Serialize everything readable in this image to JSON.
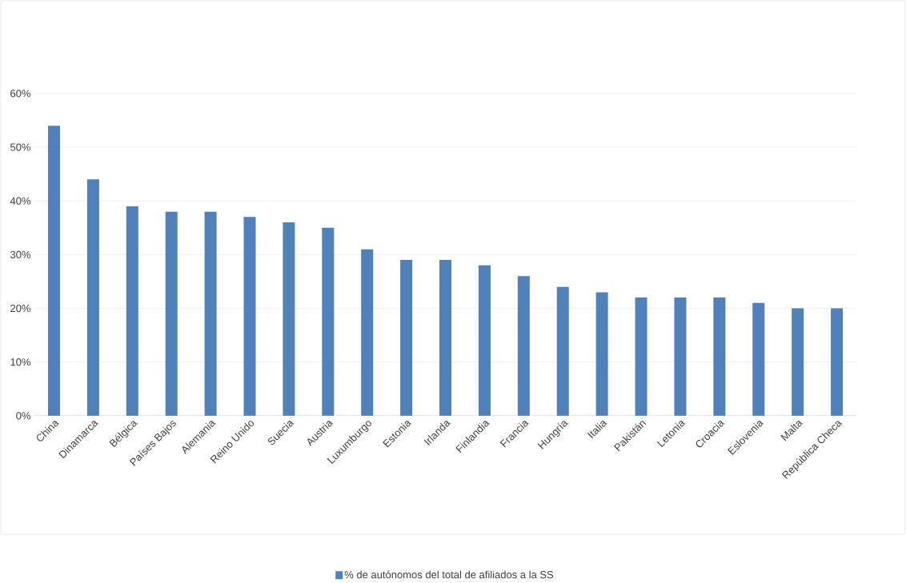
{
  "chart_data": {
    "type": "bar",
    "categories": [
      "China",
      "Dinamarca",
      "Bélgica",
      "Países Bajos",
      "Alemania",
      "Reino Unido",
      "Suecia",
      "Austria",
      "Luxumburgo",
      "Estonia",
      "Irlanda",
      "Finlandia",
      "Francia",
      "Hungría",
      "Italia",
      "Pakistán",
      "Letonia",
      "Croacia",
      "Eslovenia",
      "Malta",
      "República Checa"
    ],
    "series": [
      {
        "name": "% de autónomos del total de afiliados a la SS",
        "color": "#4f81bd",
        "values": [
          54,
          44,
          39,
          38,
          38,
          37,
          36,
          35,
          31,
          29,
          29,
          28,
          26,
          24,
          23,
          22,
          22,
          22,
          21,
          20,
          20
        ]
      }
    ],
    "ylim": [
      0,
      60
    ],
    "yticks": [
      {
        "value": 0,
        "label": "0%"
      },
      {
        "value": 10,
        "label": "10%"
      },
      {
        "value": 20,
        "label": "20%"
      },
      {
        "value": 30,
        "label": "30%"
      },
      {
        "value": 40,
        "label": "40%"
      },
      {
        "value": 50,
        "label": "50%"
      },
      {
        "value": 60,
        "label": "60%"
      }
    ],
    "grid": "y",
    "legend": "bottom"
  }
}
